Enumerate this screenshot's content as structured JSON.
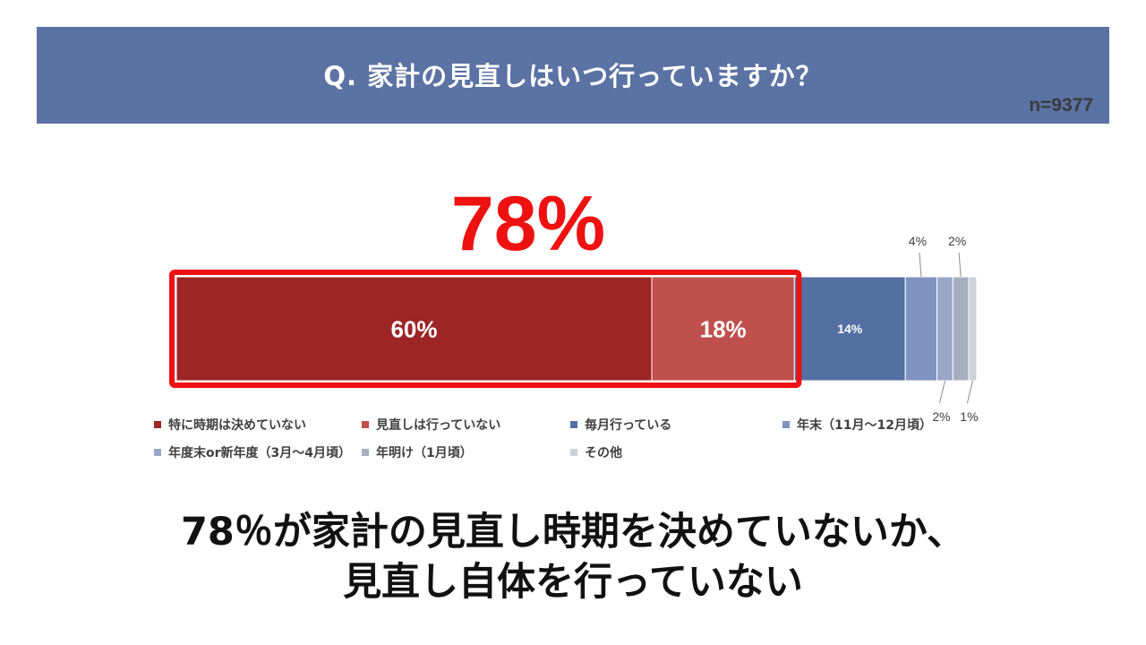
{
  "header": {
    "title": "Q. 家計の見直しはいつ行っていますか？",
    "sample_size": "n=9377"
  },
  "highlight": {
    "value_label": "78%",
    "color": "#ee1111"
  },
  "chart_data": {
    "type": "bar",
    "stacked": true,
    "orientation": "horizontal",
    "unit": "%",
    "categories": [
      "家計の見直し時期"
    ],
    "series": [
      {
        "name": "特に時期は決めていない",
        "values": [
          60
        ],
        "label": "60%",
        "color": "#9e2525"
      },
      {
        "name": "見直しは行っていない",
        "values": [
          18
        ],
        "label": "18%",
        "color": "#c0504d"
      },
      {
        "name": "毎月行っている",
        "values": [
          14
        ],
        "label": "14%",
        "color": "#5470a3"
      },
      {
        "name": "年末（11月～12月頃）",
        "values": [
          4
        ],
        "label": "4%",
        "color": "#7f92c0"
      },
      {
        "name": "年度末or新年度（3月～4月頃）",
        "values": [
          2
        ],
        "label": "2%",
        "color": "#98a6c8"
      },
      {
        "name": "年明け（1月頃）",
        "values": [
          2
        ],
        "label": "2%",
        "color": "#a7afbf"
      },
      {
        "name": "その他",
        "values": [
          1
        ],
        "label": "1%",
        "color": "#cdd1da"
      }
    ],
    "highlight_group": {
      "series": [
        "特に時期は決めていない",
        "見直しは行っていない"
      ],
      "total_label": "78%"
    },
    "legend_position": "bottom"
  },
  "conclusion": {
    "line1": "78％が家計の見直し時期を決めていないか、",
    "line2": "見直し自体を行っていない"
  }
}
